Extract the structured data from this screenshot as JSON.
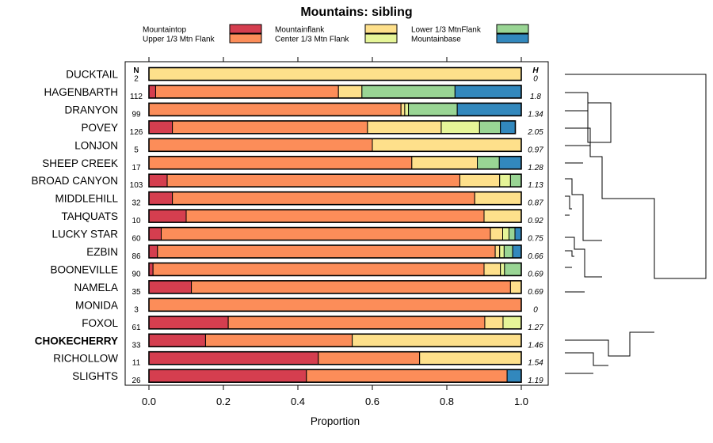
{
  "chart_data": {
    "type": "bar",
    "orientation": "horizontal-stacked",
    "title": "Mountains: sibling",
    "xlabel": "Proportion",
    "xlim": [
      0,
      1
    ],
    "xticks": [
      "0.0",
      "0.2",
      "0.4",
      "0.6",
      "0.8",
      "1.0"
    ],
    "xtick_values": [
      0,
      0.2,
      0.4,
      0.6,
      0.8,
      1.0
    ],
    "n_header": "N",
    "h_header": "H",
    "legend": [
      {
        "name": "Mountaintop",
        "color": "#d53e4f"
      },
      {
        "name": "Upper 1/3 Mtn Flank",
        "color": "#fc8d59"
      },
      {
        "name": "Mountainflank",
        "color": "#fee08b"
      },
      {
        "name": "Center 1/3 Mtn Flank",
        "color": "#e6f598"
      },
      {
        "name": "Lower 1/3 MtnFlank",
        "color": "#99d594"
      },
      {
        "name": "Mountainbase",
        "color": "#3288bd"
      }
    ],
    "rows": [
      {
        "site": "DUCKTAIL",
        "n": "2",
        "h": "0",
        "bold": false,
        "values": [
          0,
          0,
          1.0,
          0,
          0,
          0
        ]
      },
      {
        "site": "HAGENBARTH",
        "n": "112",
        "h": "1.8",
        "bold": false,
        "values": [
          0.018,
          0.491,
          0.063,
          0,
          0.25,
          0.178
        ]
      },
      {
        "site": "DRANYON",
        "n": "99",
        "h": "1.34",
        "bold": false,
        "values": [
          0,
          0.677,
          0.01,
          0.01,
          0.131,
          0.172
        ]
      },
      {
        "site": "POVEY",
        "n": "126",
        "h": "2.05",
        "bold": false,
        "values": [
          0.063,
          0.524,
          0.198,
          0.103,
          0.056,
          0.04
        ]
      },
      {
        "site": "LONJON",
        "n": "5",
        "h": "0.97",
        "bold": false,
        "values": [
          0,
          0.6,
          0.4,
          0,
          0,
          0
        ]
      },
      {
        "site": "SHEEP CREEK",
        "n": "17",
        "h": "1.28",
        "bold": false,
        "values": [
          0,
          0.706,
          0.176,
          0,
          0.059,
          0.059
        ]
      },
      {
        "site": "BROAD CANYON",
        "n": "103",
        "h": "1.13",
        "bold": false,
        "values": [
          0.049,
          0.786,
          0.107,
          0.029,
          0.029,
          0
        ]
      },
      {
        "site": "MIDDLEHILL",
        "n": "32",
        "h": "0.87",
        "bold": false,
        "values": [
          0.063,
          0.812,
          0.125,
          0,
          0,
          0
        ]
      },
      {
        "site": "TAHQUATS",
        "n": "10",
        "h": "0.92",
        "bold": false,
        "values": [
          0.1,
          0.8,
          0.1,
          0,
          0,
          0
        ]
      },
      {
        "site": "LUCKY STAR",
        "n": "60",
        "h": "0.75",
        "bold": false,
        "values": [
          0.033,
          0.884,
          0.033,
          0.017,
          0.016,
          0.017
        ]
      },
      {
        "site": "EZBIN",
        "n": "86",
        "h": "0.66",
        "bold": false,
        "values": [
          0.023,
          0.907,
          0.012,
          0.012,
          0.023,
          0.023
        ]
      },
      {
        "site": "BOONEVILLE",
        "n": "90",
        "h": "0.69",
        "bold": false,
        "values": [
          0.011,
          0.889,
          0.044,
          0.011,
          0.045,
          0
        ]
      },
      {
        "site": "NAMELA",
        "n": "35",
        "h": "0.69",
        "bold": false,
        "values": [
          0.114,
          0.857,
          0.029,
          0,
          0,
          0
        ]
      },
      {
        "site": "MONIDA",
        "n": "3",
        "h": "0",
        "bold": false,
        "values": [
          0,
          1.0,
          0,
          0,
          0,
          0
        ]
      },
      {
        "site": "FOXOL",
        "n": "61",
        "h": "1.27",
        "bold": false,
        "values": [
          0.213,
          0.689,
          0.049,
          0.049,
          0,
          0
        ]
      },
      {
        "site": "CHOKECHERRY",
        "n": "33",
        "h": "1.46",
        "bold": true,
        "values": [
          0.152,
          0.394,
          0.454,
          0,
          0,
          0
        ]
      },
      {
        "site": "RICHOLLOW",
        "n": "11",
        "h": "1.54",
        "bold": false,
        "values": [
          0.455,
          0.272,
          0.273,
          0,
          0,
          0
        ]
      },
      {
        "site": "SLIGHTS",
        "n": "26",
        "h": "1.19",
        "bold": false,
        "values": [
          0.423,
          0.539,
          0,
          0,
          0,
          0.038
        ]
      }
    ]
  }
}
